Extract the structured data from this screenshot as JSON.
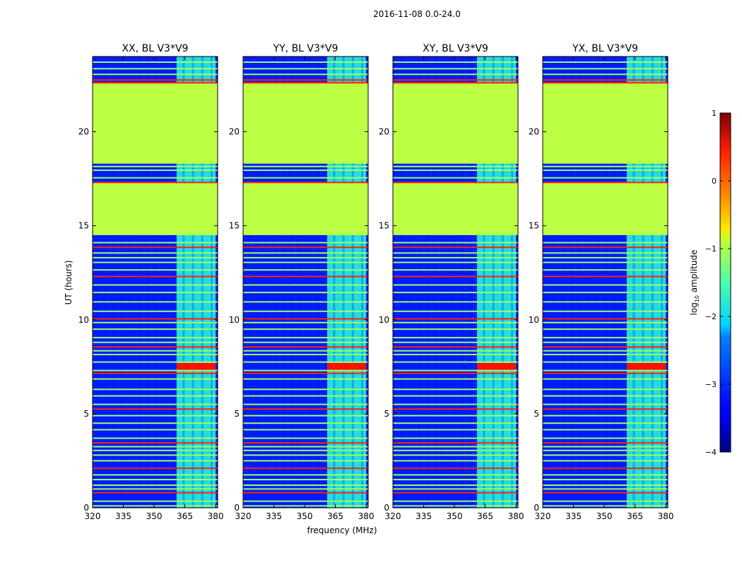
{
  "suptitle": "2016-11-08 0.0-24.0",
  "chart_data": {
    "type": "heatmap",
    "shared_xlabel": "frequency (MHz)",
    "shared_ylabel": "UT (hours)",
    "xlim": [
      320,
      381
    ],
    "ylim": [
      0,
      24
    ],
    "xticks": [
      320,
      335,
      350,
      365,
      380
    ],
    "yticks": [
      0,
      5,
      10,
      15,
      20
    ],
    "panels": [
      {
        "title": "XX, BL V3*V9"
      },
      {
        "title": "YY, BL V3*V9"
      },
      {
        "title": "XY, BL V3*V9"
      },
      {
        "title": "YX, BL V3*V9"
      }
    ],
    "colorbar": {
      "label": "log10 amplitude",
      "label_base": "log",
      "label_sub": "10",
      "label_rest": " amplitude",
      "range": [
        -4,
        1
      ],
      "ticks": [
        1,
        0,
        -1,
        -2,
        -3,
        -4
      ],
      "ticklabels": [
        "1",
        "0",
        "−1",
        "−2",
        "−3",
        "−4"
      ],
      "colormap": "jet"
    },
    "flagged_ut_ranges_hours": [
      [
        14.5,
        17.3
      ],
      [
        18.3,
        22.6
      ]
    ],
    "flag_value": -1.2,
    "background_value_range": [
      -3.6,
      -2.6
    ],
    "rfi_band_mhz": [
      361,
      380
    ],
    "rfi_band_value": -1.9,
    "rfi_hot_ut_hours": [
      7.3,
      7.7
    ],
    "rfi_hot_value": 0.3,
    "bright_lines_ut_hours": [
      0.1,
      0.35,
      0.8,
      1.0,
      1.2,
      1.5,
      1.75,
      2.1,
      2.5,
      2.8,
      3.05,
      3.25,
      3.45,
      3.7,
      4.15,
      4.5,
      4.9,
      5.25,
      5.5,
      5.95,
      6.3,
      6.85,
      7.15,
      7.3,
      7.75,
      8.15,
      8.35,
      8.55,
      8.8,
      9.05,
      9.5,
      9.85,
      10.05,
      10.45,
      10.95,
      11.45,
      11.85,
      12.3,
      12.65,
      13.05,
      13.3,
      13.55,
      13.85,
      14.1,
      17.55,
      17.95,
      18.15,
      22.75,
      23.05,
      23.35,
      23.7
    ]
  }
}
